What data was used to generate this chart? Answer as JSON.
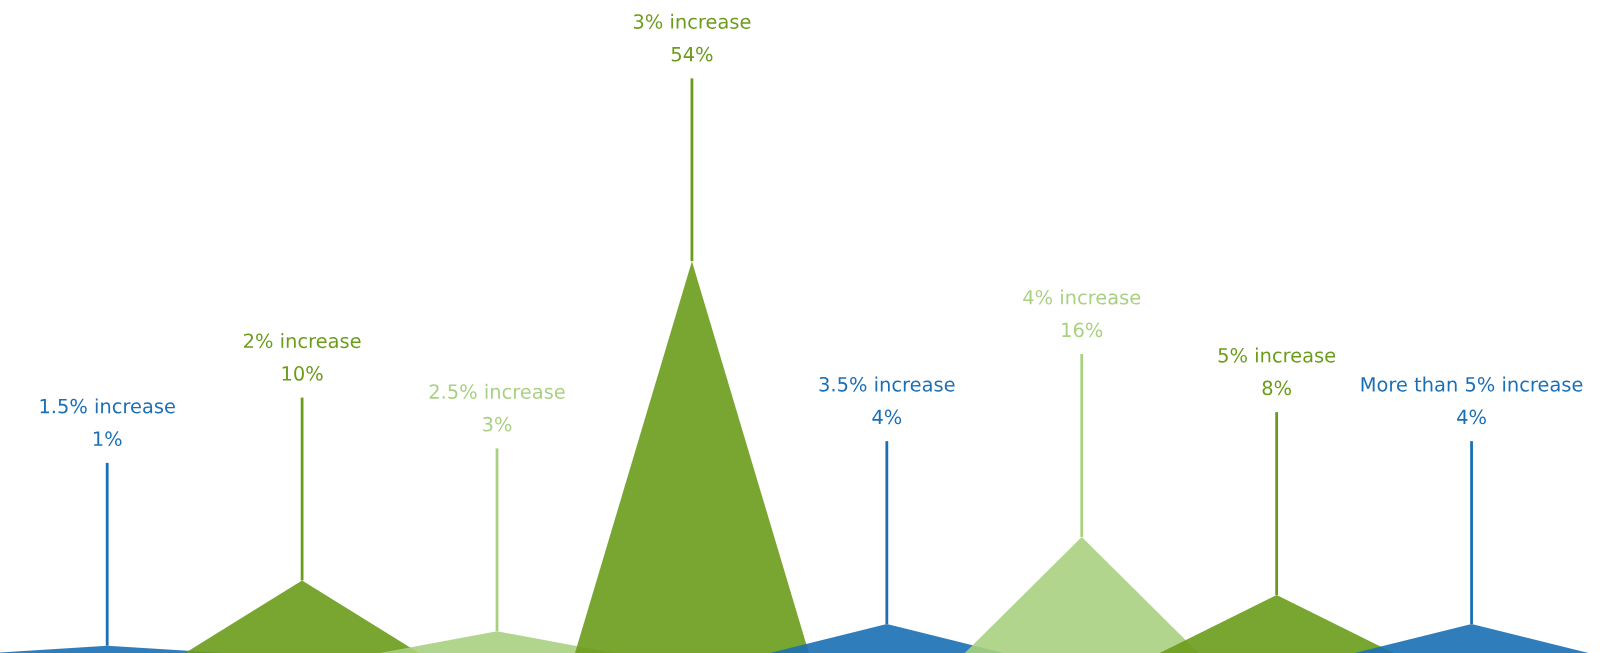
{
  "chart_data": {
    "type": "other",
    "categories": [
      "1.5% increase",
      "2% increase",
      "2.5% increase",
      "3% increase",
      "3.5% increase",
      "4% increase",
      "5% increase",
      "More than 5% increase"
    ],
    "values": [
      1,
      10,
      3,
      54,
      4,
      16,
      8,
      4
    ],
    "colors": [
      "#1a6fb5",
      "#6a9c1a",
      "#a8d080",
      "#6a9c1a",
      "#1a6fb5",
      "#a8d080",
      "#6a9c1a",
      "#1a6fb5"
    ],
    "value_labels": [
      "1%",
      "10%",
      "3%",
      "54%",
      "4%",
      "16%",
      "8%",
      "4%"
    ]
  }
}
